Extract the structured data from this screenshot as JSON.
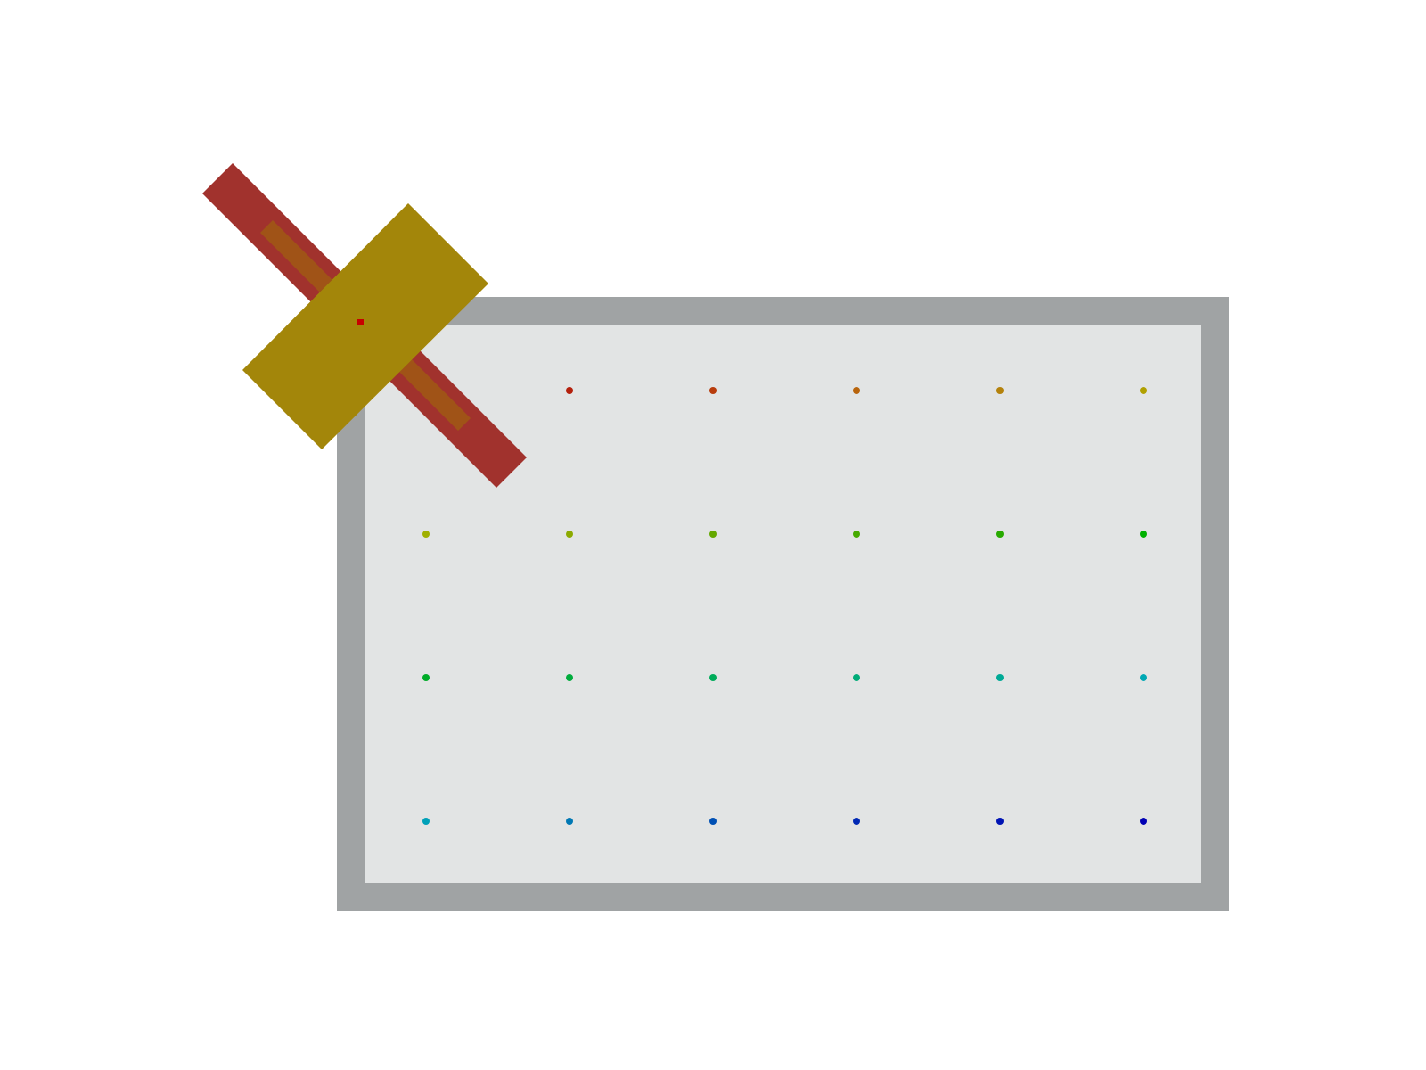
{
  "colors": {
    "background": "#ffffff",
    "table_frame": "#a0a3a4",
    "table_surface": "#e2e4e4",
    "gripper_arm": "#a1322d",
    "gripper_finger_slot": "#a05317",
    "gripper_body": "#a3860a",
    "end_effector_marker": "#c80000"
  },
  "grid": {
    "rows": 4,
    "cols": 6,
    "point_colors": [
      [
        "#c00000",
        "#b4200c",
        "#b83c0c",
        "#b8640c",
        "#b4820c",
        "#b0a000"
      ],
      [
        "#a0b000",
        "#8caa00",
        "#64a800",
        "#46aa00",
        "#28aa00",
        "#00b000"
      ],
      [
        "#00ac28",
        "#00ac3c",
        "#00ac5a",
        "#00ac78",
        "#00aa96",
        "#00a8b4"
      ],
      [
        "#00a0b8",
        "#0078b4",
        "#0050b4",
        "#0028b4",
        "#0014b4",
        "#0000b4"
      ]
    ]
  }
}
